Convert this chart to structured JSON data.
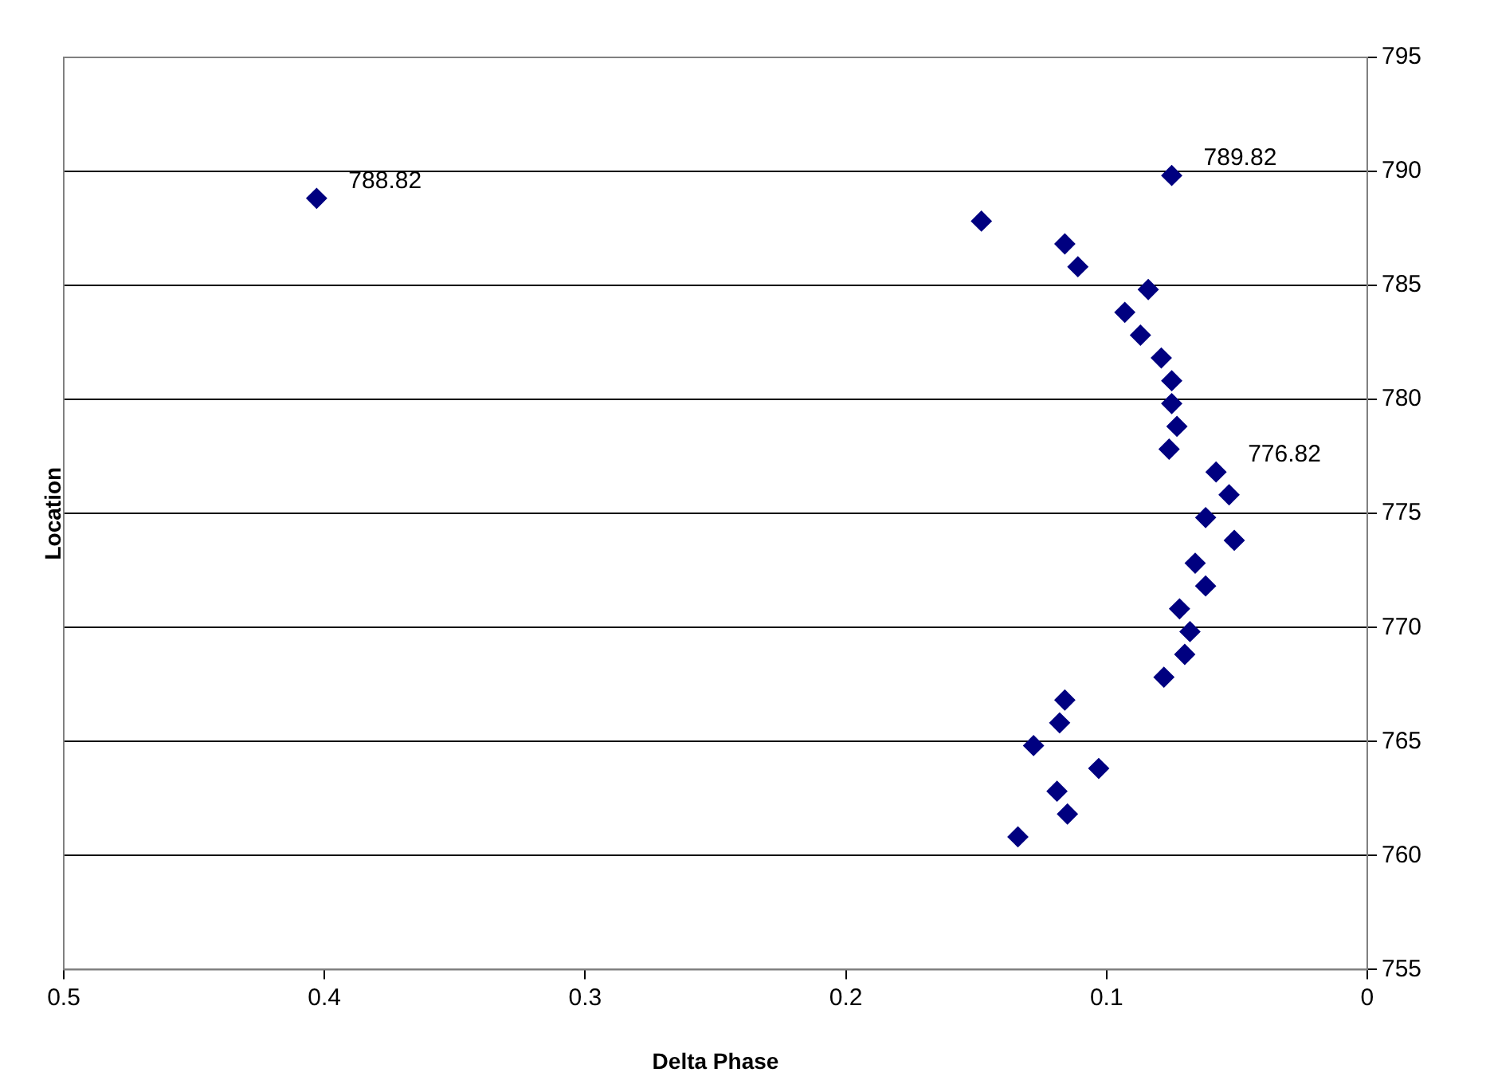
{
  "chart_data": {
    "type": "scatter",
    "xlabel": "Delta Phase",
    "ylabel": "Location",
    "x": [
      0.075,
      0.403,
      0.148,
      0.116,
      0.111,
      0.084,
      0.093,
      0.087,
      0.079,
      0.075,
      0.075,
      0.073,
      0.076,
      0.058,
      0.053,
      0.062,
      0.051,
      0.066,
      0.062,
      0.072,
      0.068,
      0.07,
      0.078,
      0.116,
      0.118,
      0.128,
      0.103,
      0.119,
      0.115,
      0.134
    ],
    "values": [
      789.82,
      788.82,
      787.82,
      786.82,
      785.82,
      784.82,
      783.82,
      782.82,
      781.82,
      780.82,
      779.82,
      778.82,
      777.82,
      776.82,
      775.82,
      774.82,
      773.82,
      772.82,
      771.82,
      770.82,
      769.82,
      768.82,
      767.82,
      766.82,
      765.82,
      764.82,
      763.82,
      762.82,
      761.82,
      760.82
    ],
    "color": "#000080",
    "marker": "diamond",
    "xlim": [
      0.5,
      0
    ],
    "xticks": [
      0.5,
      0.4,
      0.3,
      0.2,
      0.1,
      0
    ],
    "ylim": [
      755,
      795
    ],
    "yticks": [
      755,
      760,
      765,
      770,
      775,
      780,
      785,
      790,
      795
    ],
    "grid": "y",
    "legend": false,
    "annotations": [
      {
        "text": "789.82",
        "x": 0.075,
        "y": 789.82
      },
      {
        "text": "788.82",
        "x": 0.403,
        "y": 788.82
      },
      {
        "text": "776.82",
        "x": 0.058,
        "y": 776.82
      }
    ]
  }
}
